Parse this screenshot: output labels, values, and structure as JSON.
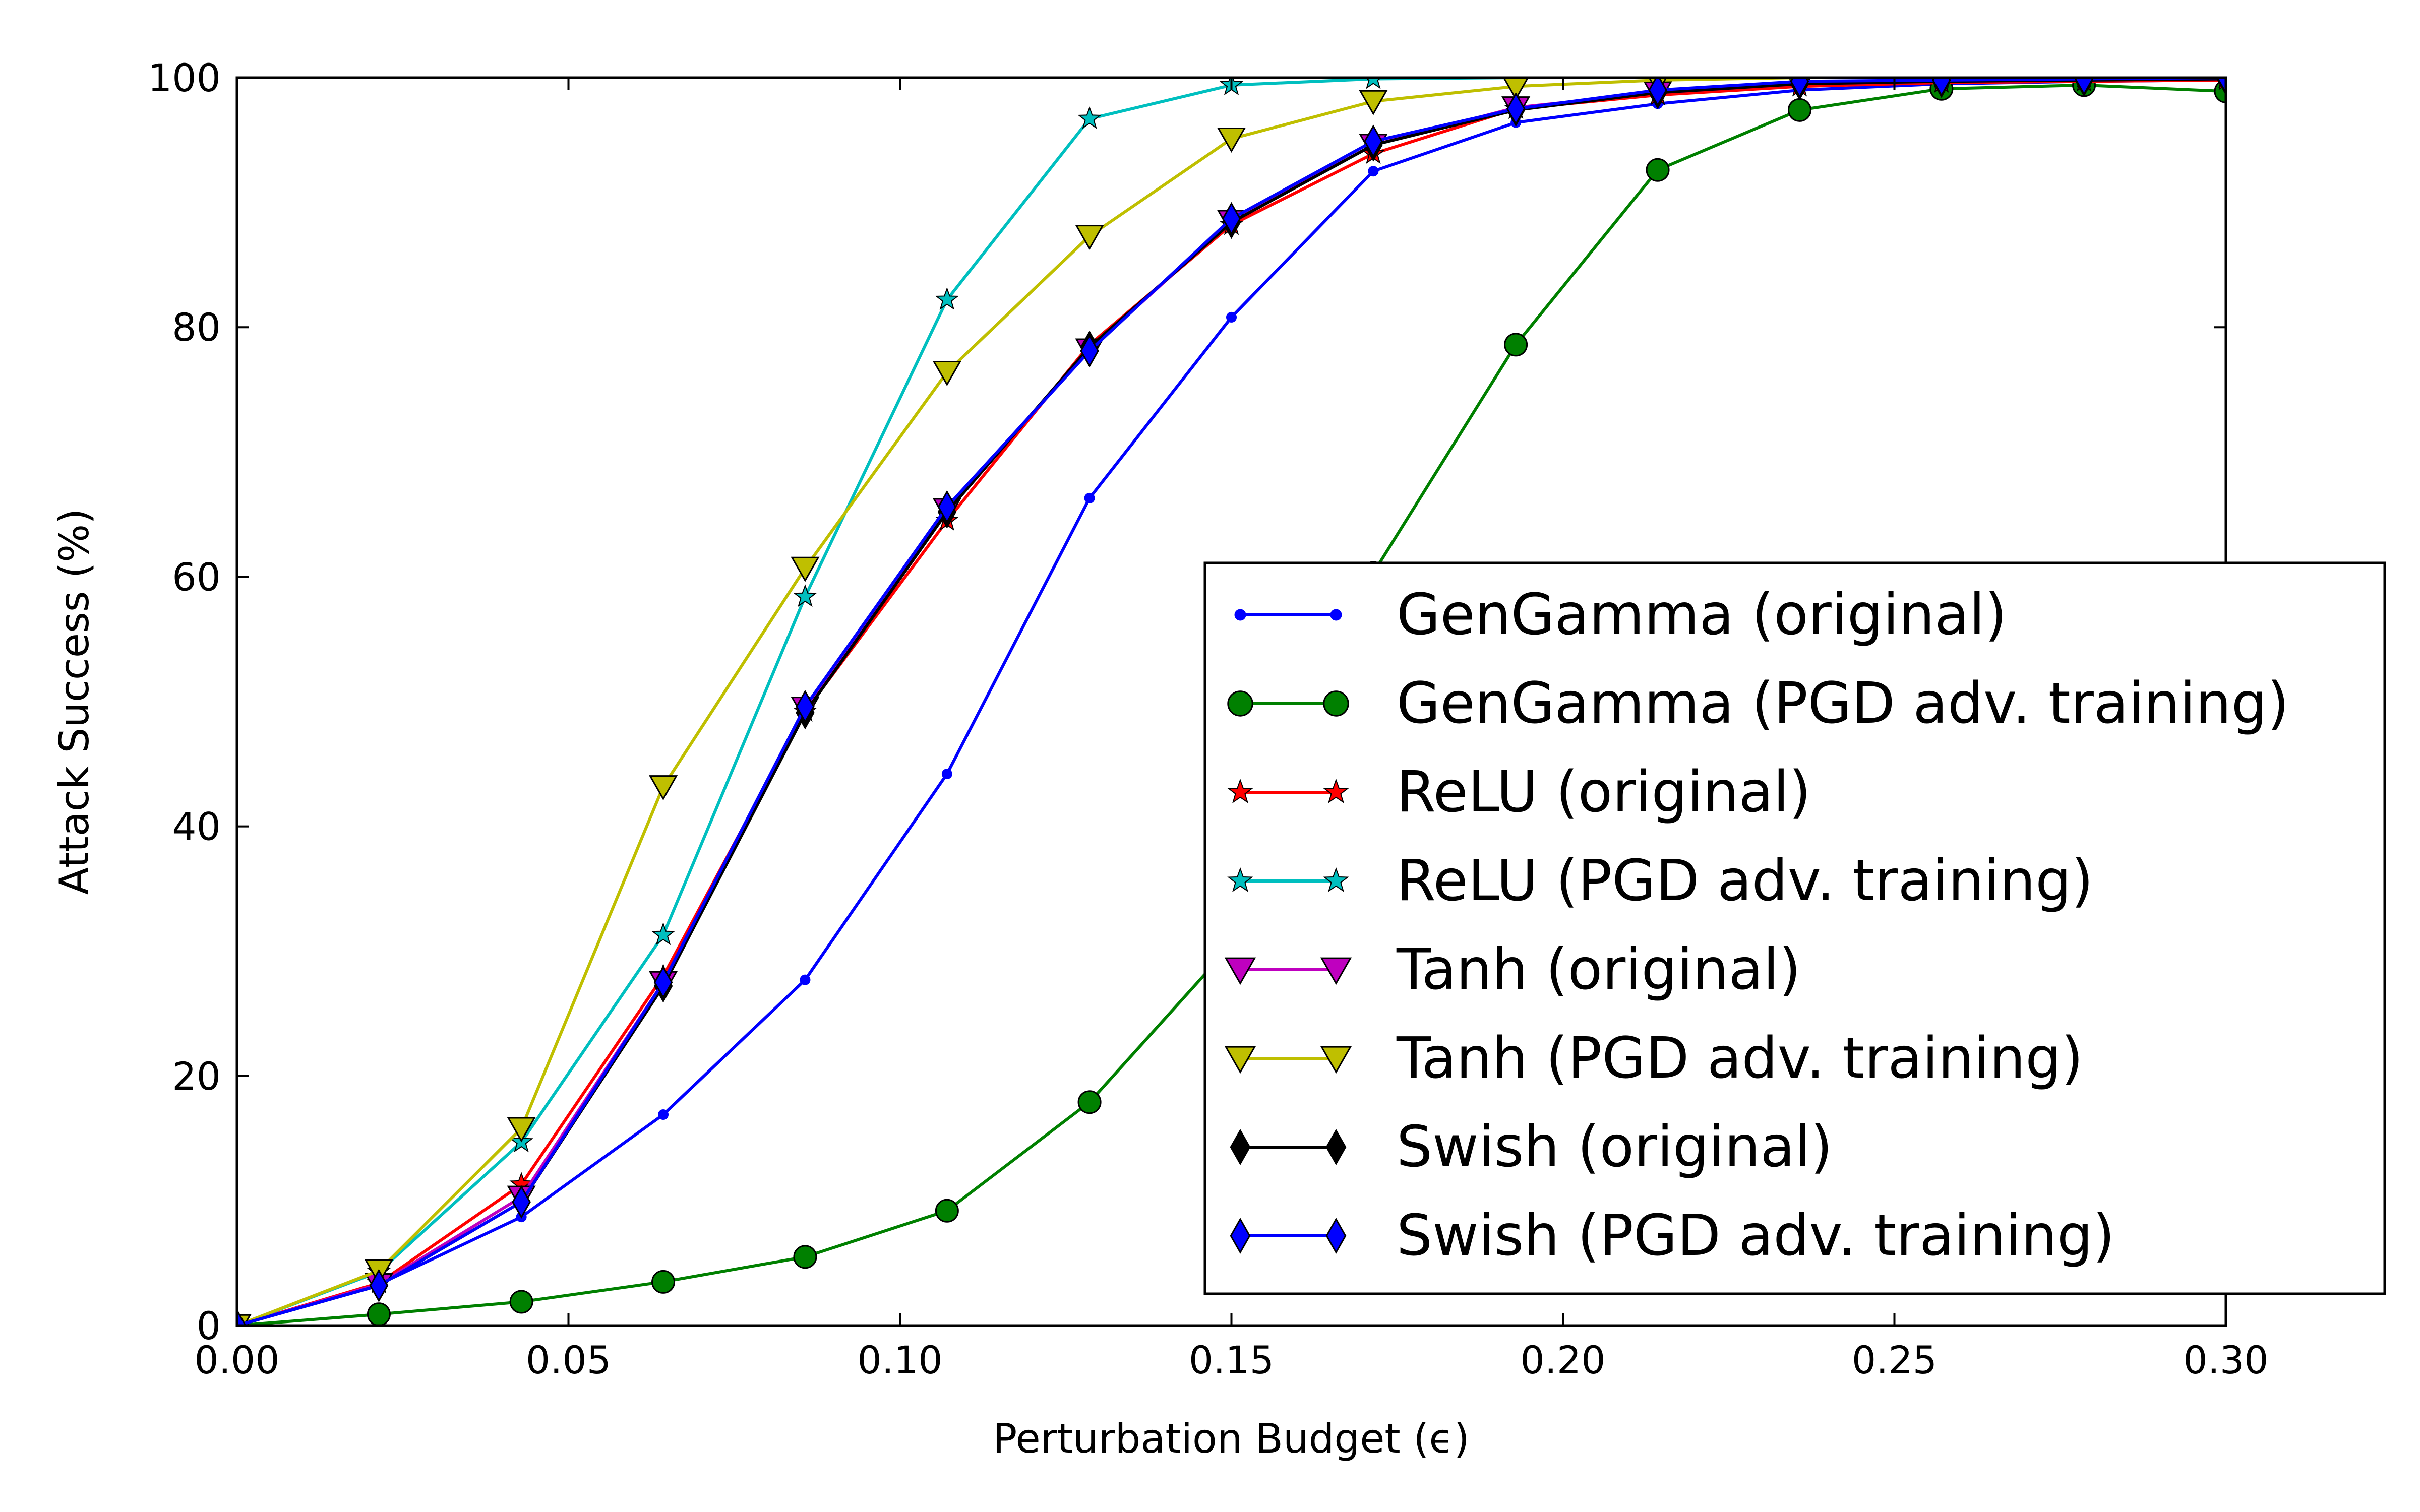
{
  "chart_data": {
    "type": "line",
    "xlabel": "Perturbation Budget (ϵ)",
    "ylabel": "Attack Success (%)",
    "xlim": [
      0.0,
      0.3
    ],
    "ylim": [
      0,
      100
    ],
    "x_ticks": [
      "0.00",
      "0.05",
      "0.10",
      "0.15",
      "0.20",
      "0.25",
      "0.30"
    ],
    "y_ticks": [
      "0",
      "20",
      "40",
      "60",
      "80",
      "100"
    ],
    "grid": false,
    "legend_position": "lower-right",
    "x": [
      0.0,
      0.0214,
      0.0429,
      0.0643,
      0.0857,
      0.1071,
      0.1286,
      0.15,
      0.1714,
      0.1929,
      0.2143,
      0.2357,
      0.2571,
      0.2786,
      0.3
    ],
    "series": [
      {
        "name": "GenGamma (original)",
        "color": "#0000ff",
        "marker": "point",
        "values": [
          0,
          3.3,
          8.7,
          16.9,
          27.7,
          44.2,
          66.3,
          80.8,
          92.5,
          96.4,
          97.9,
          99.0,
          99.5,
          99.7,
          99.8
        ]
      },
      {
        "name": "GenGamma (PGD adv. training)",
        "color": "#008000",
        "marker": "circle",
        "values": [
          0,
          0.9,
          1.9,
          3.5,
          5.5,
          9.2,
          17.9,
          30.5,
          60.3,
          78.6,
          92.6,
          97.4,
          99.1,
          99.4,
          98.9
        ]
      },
      {
        "name": "ReLU (original)",
        "color": "#ff0000",
        "marker": "star",
        "values": [
          0,
          3.4,
          11.3,
          28.0,
          49.2,
          64.5,
          78.6,
          88.2,
          93.9,
          97.5,
          98.6,
          99.3,
          99.6,
          99.7,
          99.8
        ]
      },
      {
        "name": "ReLU (PGD adv. training)",
        "color": "#00bfbf",
        "marker": "star",
        "values": [
          0,
          4.3,
          14.7,
          31.3,
          58.4,
          82.2,
          96.7,
          99.4,
          99.9,
          100,
          100,
          100,
          100,
          100,
          100
        ]
      },
      {
        "name": "Tanh (original)",
        "color": "#bf00bf",
        "marker": "triangle-down",
        "values": [
          0,
          3.3,
          10.3,
          27.5,
          49.5,
          65.4,
          78.2,
          88.5,
          94.6,
          97.6,
          98.8,
          99.5,
          99.7,
          99.8,
          99.9
        ]
      },
      {
        "name": "Tanh (PGD adv. training)",
        "color": "#bfbf00",
        "marker": "triangle-down",
        "values": [
          0,
          4.4,
          15.8,
          43.2,
          60.7,
          76.4,
          87.3,
          95.1,
          98.1,
          99.3,
          99.8,
          100,
          100,
          100,
          100
        ]
      },
      {
        "name": "Swish (original)",
        "color": "#000000",
        "marker": "diamond",
        "values": [
          0,
          3.2,
          9.9,
          27.2,
          49.1,
          65.2,
          78.4,
          88.4,
          94.6,
          97.4,
          98.8,
          99.5,
          99.7,
          99.8,
          99.9
        ]
      },
      {
        "name": "Swish (PGD adv. training)",
        "color": "#0000ff",
        "marker": "diamond",
        "values": [
          0,
          3.2,
          9.9,
          27.5,
          49.6,
          65.6,
          78.1,
          88.7,
          94.9,
          97.5,
          99.0,
          99.7,
          99.8,
          99.9,
          100
        ]
      }
    ]
  }
}
